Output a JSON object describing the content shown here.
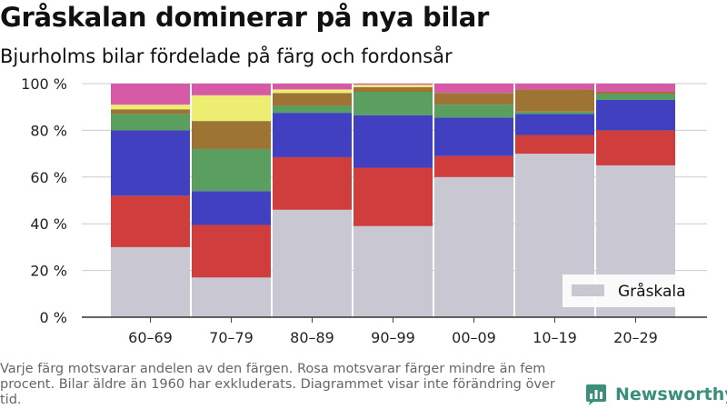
{
  "title": "Gråskalan dominerar på nya bilar",
  "subtitle": "Bjurholms bilar fördelade på färg och fordonsår",
  "footnote": "Varje färg motsvarar andelen av den färgen. Rosa motsvarar färger mindre än fem procent. Bilar äldre än 1960 har exkluderats. Diagrammet visar inte förändring över tid.",
  "brand": {
    "name": "Newsworthy",
    "logo_icon": "newsworthy-chart-icon",
    "color": "#3a8f7c"
  },
  "chart_data": {
    "type": "bar",
    "stacked": true,
    "categories": [
      "60–69",
      "70–79",
      "80–89",
      "90–99",
      "00–09",
      "10–19",
      "20–29"
    ],
    "yticks": [
      "0 %",
      "20 %",
      "40 %",
      "60 %",
      "80 %",
      "100 %"
    ],
    "ylim": [
      0,
      100
    ],
    "grid": true,
    "legend": {
      "position": "bottom-right",
      "entries": [
        "Gråskala"
      ]
    },
    "series": [
      {
        "name": "Gråskala",
        "color": "#c8c7d2",
        "values": [
          30,
          17,
          46,
          39,
          60,
          70,
          65
        ]
      },
      {
        "color": "#cf3d3d",
        "values": [
          22,
          22.5,
          22.5,
          25,
          9,
          8,
          15
        ]
      },
      {
        "color": "#4040c0",
        "values": [
          28,
          14.5,
          19,
          22.5,
          16.5,
          9,
          13
        ]
      },
      {
        "color": "#5a9e60",
        "values": [
          7,
          18,
          3,
          10,
          5.5,
          1,
          2.5
        ]
      },
      {
        "color": "#9e7434",
        "values": [
          2,
          12,
          5.5,
          2,
          5,
          9.5,
          1
        ]
      },
      {
        "color": "#eded72",
        "values": [
          2,
          11,
          1.5,
          1,
          0,
          0,
          0
        ]
      },
      {
        "color": "#d65aa6",
        "values": [
          9,
          5,
          2.5,
          0.5,
          4,
          2.5,
          3.5
        ]
      }
    ]
  }
}
